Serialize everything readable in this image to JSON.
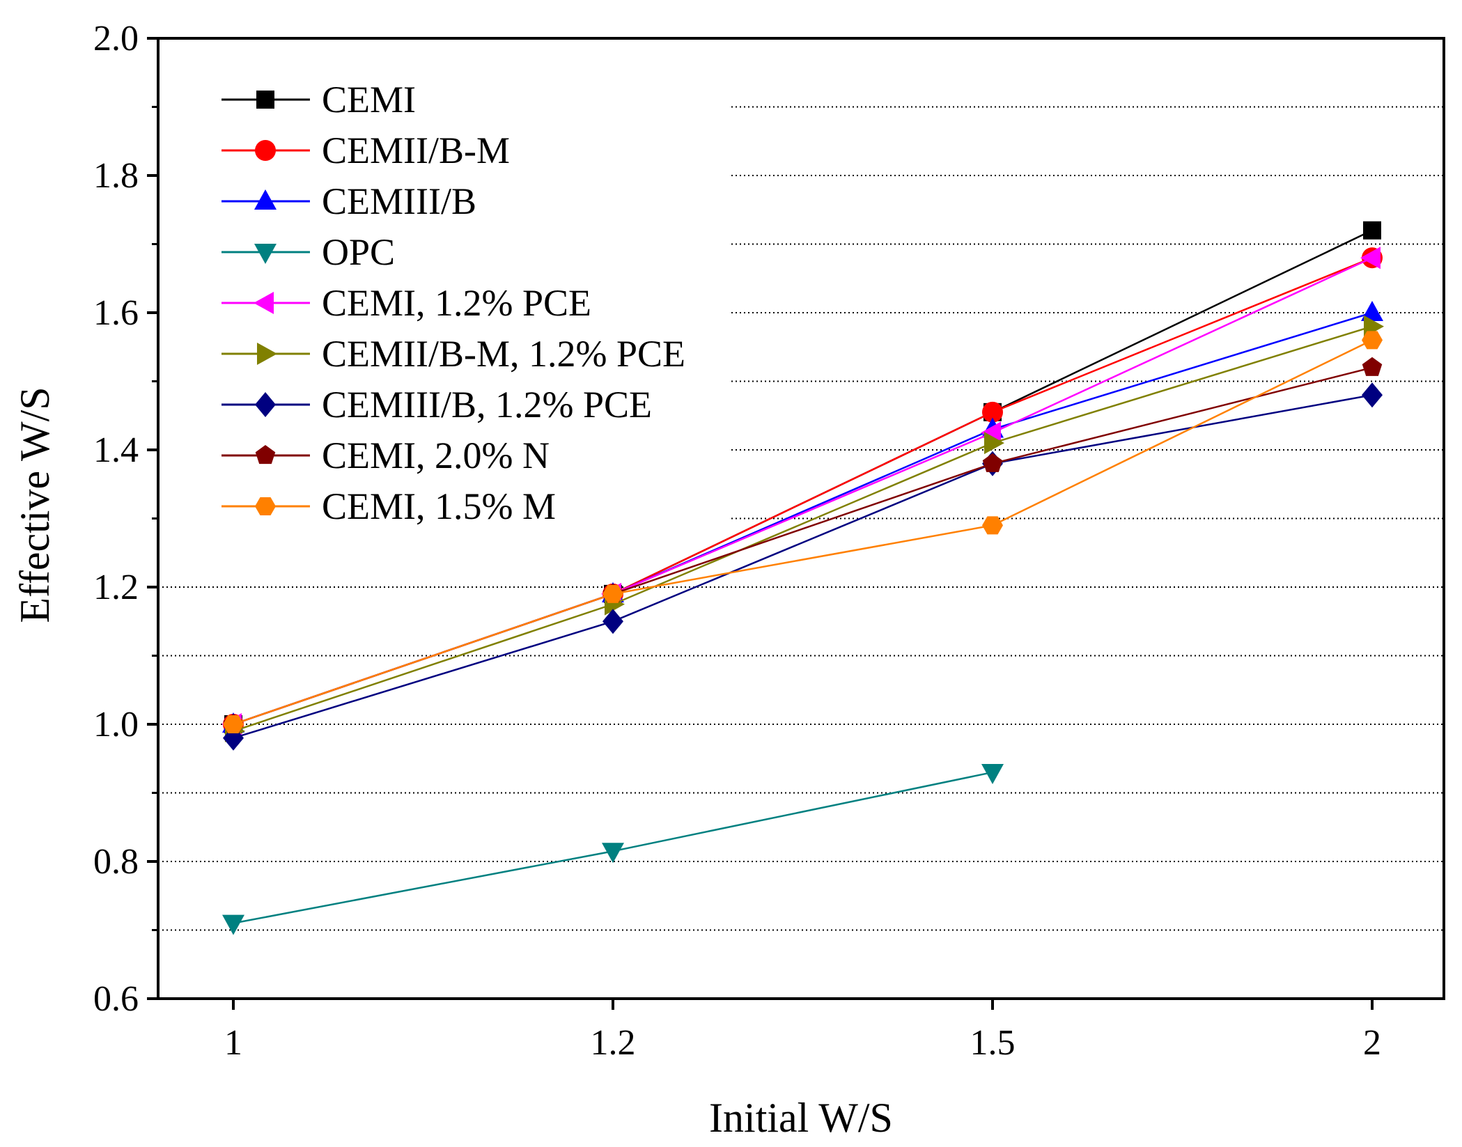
{
  "chart_data": {
    "type": "line",
    "title": "",
    "xlabel": "Initial W/S",
    "ylabel": "Effective W/S",
    "categories": [
      "1",
      "1.2",
      "1.5",
      "2"
    ],
    "ylim": [
      0.6,
      2.0
    ],
    "yticks": [
      "0.6",
      "0.8",
      "1.0",
      "1.2",
      "1.4",
      "1.6",
      "1.8",
      "2.0"
    ],
    "grid": "horizontal dotted",
    "legend_position": "top-left",
    "series": [
      {
        "name": "CEMI",
        "color": "#000000",
        "marker": "square",
        "values": [
          1.0,
          1.19,
          1.455,
          1.72
        ]
      },
      {
        "name": "CEMII/B-M",
        "color": "#ff0000",
        "marker": "circle",
        "values": [
          1.0,
          1.19,
          1.455,
          1.68
        ]
      },
      {
        "name": "CEMIII/B",
        "color": "#0000ff",
        "marker": "triangle-up",
        "values": [
          1.0,
          1.19,
          1.43,
          1.6
        ]
      },
      {
        "name": "OPC",
        "color": "#008080",
        "marker": "triangle-down",
        "values": [
          0.71,
          0.815,
          0.93,
          null
        ]
      },
      {
        "name": "CEMI, 1.2% PCE",
        "color": "#ff00ff",
        "marker": "triangle-left",
        "values": [
          1.0,
          1.19,
          1.425,
          1.68
        ]
      },
      {
        "name": "CEMII/B-M, 1.2% PCE",
        "color": "#808000",
        "marker": "triangle-right",
        "values": [
          0.99,
          1.175,
          1.41,
          1.58
        ]
      },
      {
        "name": "CEMIII/B, 1.2% PCE",
        "color": "#000080",
        "marker": "diamond",
        "values": [
          0.98,
          1.15,
          1.38,
          1.48
        ]
      },
      {
        "name": "CEMI, 2.0% N",
        "color": "#800000",
        "marker": "pentagon",
        "values": [
          1.0,
          1.19,
          1.38,
          1.52
        ]
      },
      {
        "name": "CEMI, 1.5% M",
        "color": "#ff8000",
        "marker": "hexagon",
        "values": [
          1.0,
          1.19,
          1.29,
          1.56
        ]
      }
    ]
  }
}
